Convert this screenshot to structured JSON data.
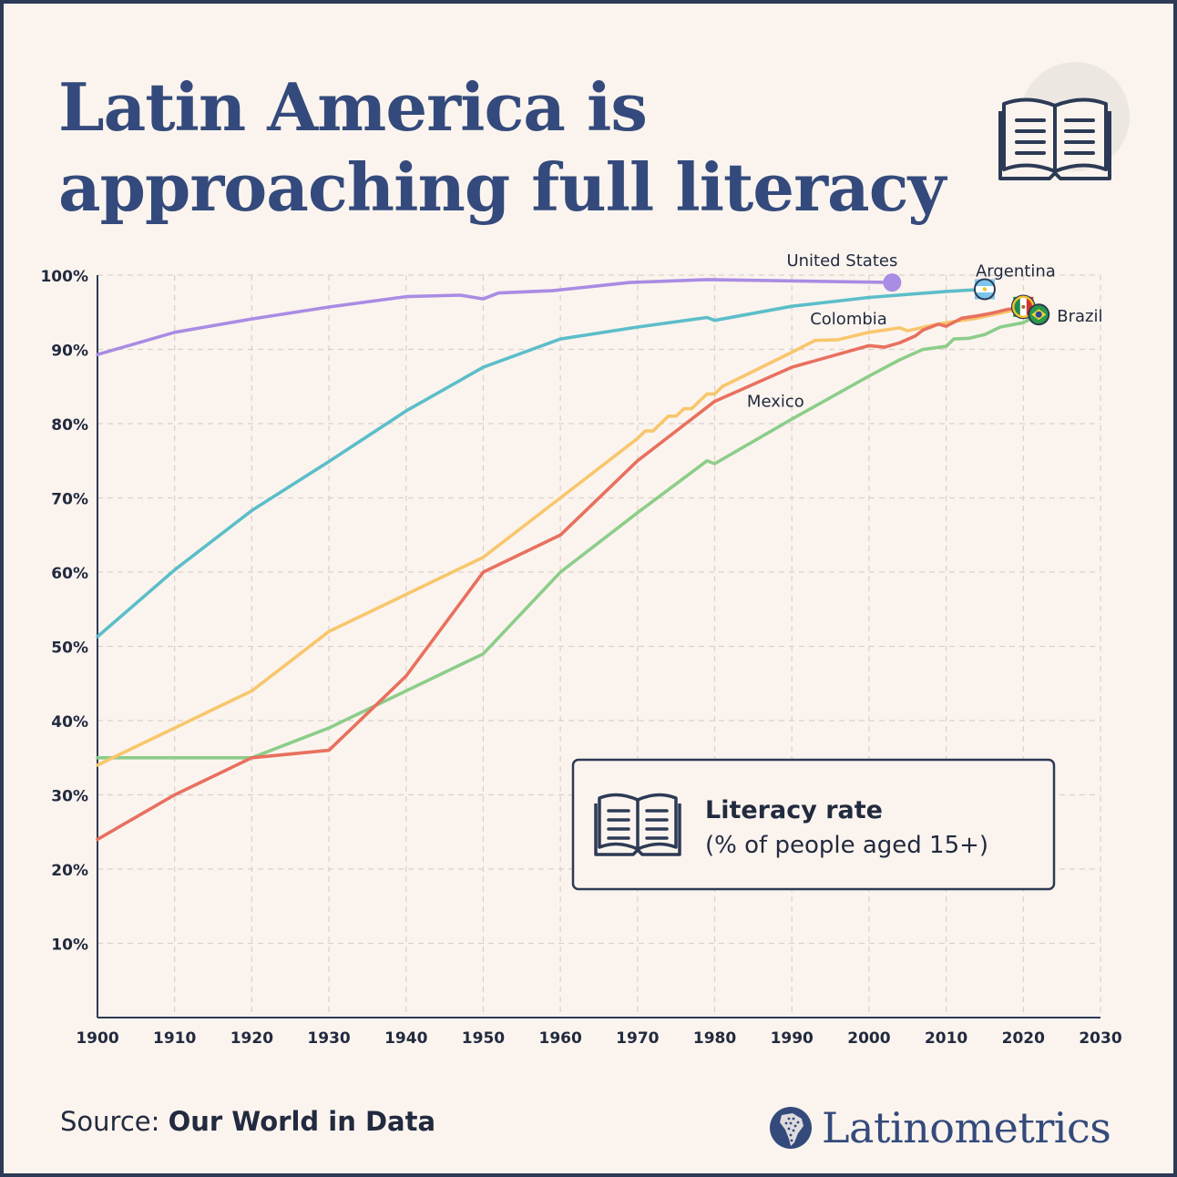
{
  "title_line1": "Latin America is",
  "title_line2": "approaching full literacy",
  "legend": {
    "title": "Literacy rate",
    "subtitle": "(% of people aged 15+)"
  },
  "source_label": "Source: ",
  "source_name": "Our World in Data",
  "brand": "Latinometrics",
  "icons": [
    "open-book-icon",
    "latin-america-map-icon",
    "argentina-flag-icon",
    "mexico-flag-icon",
    "brazil-flag-icon"
  ],
  "chart_data": {
    "type": "line",
    "title": "Latin America is approaching full literacy",
    "xlim": [
      1900,
      2030
    ],
    "ylim": [
      0,
      100
    ],
    "x_ticks": [
      1900,
      1910,
      1920,
      1930,
      1940,
      1950,
      1960,
      1970,
      1980,
      1990,
      2000,
      2010,
      2020,
      2030
    ],
    "y_ticks": [
      10,
      20,
      30,
      40,
      50,
      60,
      70,
      80,
      90,
      100
    ],
    "y_tick_labels": [
      "10%",
      "20%",
      "30%",
      "40%",
      "50%",
      "60%",
      "70%",
      "80%",
      "90%",
      "100%"
    ],
    "grid": true,
    "series": [
      {
        "name": "United States",
        "color": "#a98ce3",
        "end_marker": "dot",
        "points": [
          [
            1900,
            89.3
          ],
          [
            1910,
            92.3
          ],
          [
            1920,
            94.1
          ],
          [
            1930,
            95.7
          ],
          [
            1940,
            97.1
          ],
          [
            1947,
            97.3
          ],
          [
            1950,
            96.8
          ],
          [
            1952,
            97.6
          ],
          [
            1959,
            97.9
          ],
          [
            1969,
            99.0
          ],
          [
            1979,
            99.4
          ],
          [
            2003,
            99.0
          ]
        ]
      },
      {
        "name": "Argentina",
        "color": "#5bbec9",
        "end_marker": "argentina-flag-icon",
        "points": [
          [
            1900,
            51.3
          ],
          [
            1910,
            60.3
          ],
          [
            1920,
            68.3
          ],
          [
            1930,
            74.9
          ],
          [
            1940,
            81.7
          ],
          [
            1950,
            87.6
          ],
          [
            1960,
            91.4
          ],
          [
            1970,
            93.0
          ],
          [
            1979,
            94.3
          ],
          [
            1980,
            93.9
          ],
          [
            1990,
            95.8
          ],
          [
            2000,
            97.0
          ],
          [
            2010,
            97.8
          ],
          [
            2015,
            98.1
          ]
        ]
      },
      {
        "name": "Colombia",
        "color": "#f8c66c",
        "end_marker": "none",
        "points": [
          [
            1900,
            34.0
          ],
          [
            1910,
            39.0
          ],
          [
            1920,
            44.0
          ],
          [
            1930,
            52.0
          ],
          [
            1940,
            57.0
          ],
          [
            1950,
            62.0
          ],
          [
            1960,
            70.0
          ],
          [
            1970,
            78.0
          ],
          [
            1971,
            79.0
          ],
          [
            1972,
            79.0
          ],
          [
            1974,
            81.0
          ],
          [
            1975,
            81.0
          ],
          [
            1976,
            82.0
          ],
          [
            1977,
            82.0
          ],
          [
            1979,
            84.0
          ],
          [
            1980,
            84.0
          ],
          [
            1981,
            85.0
          ],
          [
            1990,
            89.6
          ],
          [
            1993,
            91.2
          ],
          [
            1996,
            91.3
          ],
          [
            2000,
            92.3
          ],
          [
            2004,
            92.9
          ],
          [
            2005,
            92.5
          ],
          [
            2008,
            93.2
          ],
          [
            2010,
            93.6
          ],
          [
            2014,
            94.2
          ],
          [
            2018,
            95.1
          ],
          [
            2020,
            95.6
          ]
        ]
      },
      {
        "name": "Mexico",
        "color": "#e8705f",
        "end_marker": "mexico-flag-icon",
        "points": [
          [
            1900,
            24.0
          ],
          [
            1910,
            30.0
          ],
          [
            1920,
            35.0
          ],
          [
            1930,
            36.0
          ],
          [
            1940,
            46.0
          ],
          [
            1950,
            60.0
          ],
          [
            1960,
            65.0
          ],
          [
            1970,
            75.0
          ],
          [
            1980,
            83.0
          ],
          [
            1990,
            87.6
          ],
          [
            2000,
            90.5
          ],
          [
            2002,
            90.3
          ],
          [
            2004,
            90.9
          ],
          [
            2006,
            91.8
          ],
          [
            2007,
            92.6
          ],
          [
            2009,
            93.4
          ],
          [
            2010,
            93.1
          ],
          [
            2012,
            94.2
          ],
          [
            2014,
            94.5
          ],
          [
            2016,
            94.9
          ],
          [
            2018,
            95.4
          ],
          [
            2020,
            95.6
          ]
        ]
      },
      {
        "name": "Brazil",
        "color": "#8ccd8a",
        "end_marker": "brazil-flag-icon",
        "points": [
          [
            1900,
            35.0
          ],
          [
            1910,
            35.0
          ],
          [
            1920,
            35.0
          ],
          [
            1930,
            39.0
          ],
          [
            1940,
            44.0
          ],
          [
            1950,
            49.0
          ],
          [
            1960,
            60.0
          ],
          [
            1970,
            68.0
          ],
          [
            1979,
            75.0
          ],
          [
            1980,
            74.6
          ],
          [
            1990,
            80.6
          ],
          [
            2000,
            86.4
          ],
          [
            2004,
            88.6
          ],
          [
            2007,
            90.0
          ],
          [
            2010,
            90.4
          ],
          [
            2011,
            91.4
          ],
          [
            2013,
            91.5
          ],
          [
            2015,
            92.0
          ],
          [
            2017,
            93.0
          ],
          [
            2020,
            93.6
          ],
          [
            2022,
            94.7
          ]
        ]
      }
    ],
    "series_labels": [
      {
        "text": "United States",
        "series": "United States"
      },
      {
        "text": "Argentina",
        "series": "Argentina"
      },
      {
        "text": "Colombia",
        "series": "Colombia"
      },
      {
        "text": "Mexico",
        "series": "Mexico"
      },
      {
        "text": "Brazil",
        "series": "Brazil"
      }
    ]
  }
}
